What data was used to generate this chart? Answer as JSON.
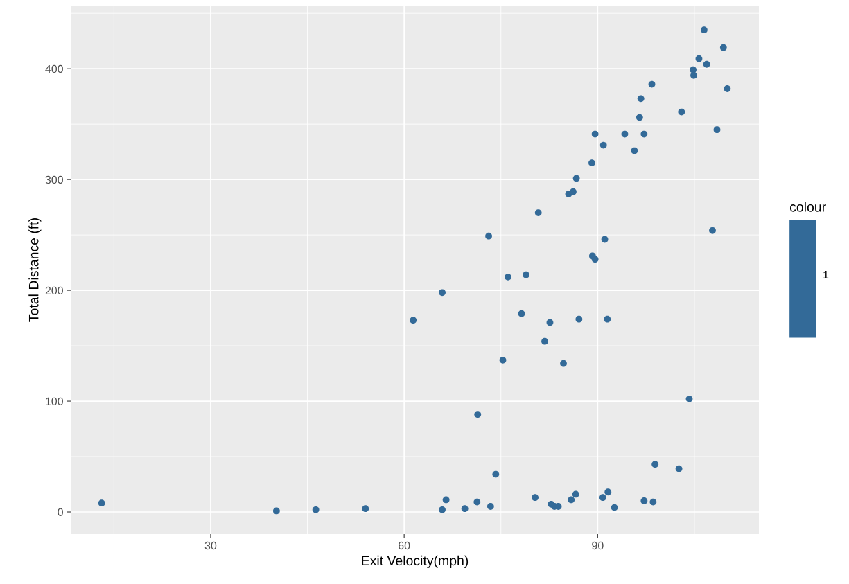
{
  "chart_data": {
    "type": "scatter",
    "xlabel": "Exit Velocity(mph)",
    "ylabel": "Total Distance (ft)",
    "legend_title": "colour",
    "legend": "right",
    "grid": true,
    "marker": "circle",
    "xlim": [
      8.3,
      115
    ],
    "xticks": [
      30,
      60,
      90
    ],
    "ylim": [
      -20,
      457
    ],
    "yticks": [
      0,
      100,
      200,
      300,
      400
    ],
    "series": [
      {
        "name": "1",
        "color": "#336a98",
        "x": [
          13.1,
          40.2,
          46.3,
          54.0,
          61.4,
          65.9,
          65.9,
          66.5,
          69.4,
          71.4,
          71.3,
          73.1,
          73.4,
          74.2,
          75.3,
          76.1,
          78.2,
          78.9,
          80.3,
          80.8,
          81.8,
          82.6,
          82.8,
          83.3,
          83.9,
          84.7,
          85.5,
          85.9,
          86.2,
          86.6,
          86.7,
          87.1,
          89.1,
          89.2,
          89.6,
          89.6,
          90.8,
          90.9,
          91.1,
          91.5,
          91.6,
          92.6,
          94.2,
          95.7,
          96.5,
          96.7,
          97.2,
          97.2,
          98.4,
          98.6,
          98.9,
          102.6,
          103.0,
          104.2,
          104.8,
          104.9,
          105.7,
          106.5,
          106.9,
          107.8,
          108.5,
          109.5,
          110.1
        ],
        "values": [
          8,
          1,
          2,
          3,
          173,
          198,
          2,
          11,
          3,
          88,
          9,
          249,
          5,
          34,
          137,
          212,
          179,
          214,
          13,
          270,
          154,
          171,
          7,
          5,
          5,
          134,
          287,
          11,
          289,
          16,
          301,
          174,
          315,
          231,
          341,
          228,
          13,
          331,
          246,
          174,
          18,
          4,
          341,
          326,
          356,
          373,
          341,
          10,
          386,
          9,
          43,
          39,
          361,
          102,
          399,
          394,
          409,
          435,
          404,
          254,
          345,
          419,
          382
        ]
      }
    ]
  }
}
